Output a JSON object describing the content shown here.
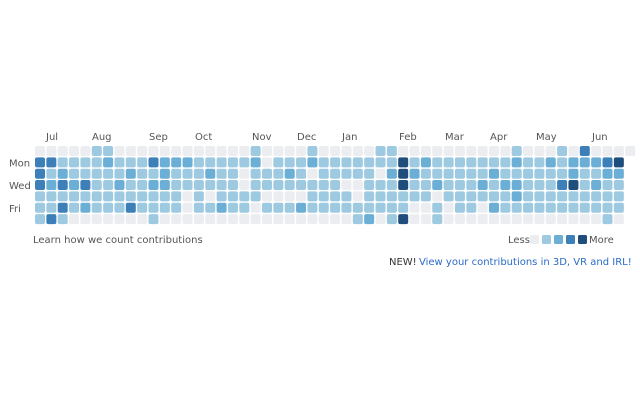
{
  "months": [
    "Jul",
    "Aug",
    "Sep",
    "Oct",
    "Nov",
    "Dec",
    "Jan",
    "Feb",
    "Mar",
    "Apr",
    "May",
    "Jun"
  ],
  "days": [
    "Mon",
    "Wed",
    "Fri"
  ],
  "levels_colors": [
    "#ebedf0",
    "#9ecae1",
    "#6baed6",
    "#3d7fb8",
    "#1f4e7c"
  ],
  "cells": [
    [
      0,
      0,
      0,
      0,
      0,
      1,
      1,
      0,
      0,
      0,
      0,
      0,
      0,
      0,
      0,
      0,
      0,
      0,
      0,
      1,
      0,
      0,
      0,
      0,
      1,
      0,
      0,
      0,
      0,
      0,
      1,
      1,
      0,
      0,
      0,
      0,
      0,
      0,
      0,
      0,
      0,
      0,
      1,
      0,
      0,
      0,
      1,
      0,
      3,
      0,
      0,
      0,
      0
    ],
    [
      3,
      3,
      1,
      1,
      1,
      1,
      2,
      1,
      1,
      1,
      3,
      2,
      2,
      2,
      1,
      1,
      1,
      1,
      1,
      2,
      0,
      1,
      1,
      1,
      2,
      1,
      1,
      1,
      1,
      1,
      1,
      1,
      4,
      1,
      2,
      1,
      1,
      1,
      1,
      1,
      1,
      1,
      2,
      1,
      1,
      2,
      1,
      2,
      2,
      2,
      3,
      4,
      null
    ],
    [
      3,
      1,
      2,
      1,
      1,
      1,
      1,
      1,
      2,
      1,
      1,
      2,
      1,
      1,
      1,
      2,
      1,
      1,
      0,
      1,
      1,
      1,
      2,
      1,
      0,
      1,
      1,
      1,
      1,
      1,
      0,
      2,
      4,
      2,
      1,
      1,
      1,
      1,
      1,
      1,
      2,
      1,
      1,
      1,
      1,
      1,
      1,
      2,
      1,
      1,
      2,
      2,
      null
    ],
    [
      3,
      2,
      3,
      2,
      3,
      1,
      1,
      2,
      1,
      1,
      2,
      2,
      1,
      1,
      1,
      1,
      1,
      1,
      0,
      1,
      1,
      1,
      1,
      1,
      1,
      1,
      1,
      0,
      0,
      1,
      1,
      1,
      4,
      1,
      1,
      2,
      1,
      1,
      1,
      2,
      1,
      2,
      2,
      1,
      1,
      1,
      3,
      4,
      1,
      2,
      1,
      1,
      null
    ],
    [
      1,
      1,
      1,
      1,
      1,
      1,
      1,
      1,
      1,
      1,
      1,
      1,
      1,
      0,
      1,
      0,
      1,
      1,
      1,
      1,
      0,
      0,
      0,
      0,
      1,
      1,
      1,
      1,
      0,
      1,
      1,
      1,
      1,
      1,
      1,
      0,
      1,
      1,
      1,
      1,
      1,
      1,
      2,
      1,
      1,
      1,
      1,
      1,
      1,
      1,
      1,
      1,
      null
    ],
    [
      1,
      1,
      3,
      1,
      2,
      1,
      1,
      1,
      3,
      1,
      1,
      1,
      1,
      0,
      1,
      1,
      2,
      1,
      1,
      0,
      1,
      1,
      1,
      2,
      1,
      1,
      1,
      1,
      1,
      1,
      1,
      1,
      1,
      0,
      0,
      1,
      0,
      1,
      1,
      0,
      2,
      1,
      1,
      1,
      1,
      1,
      1,
      1,
      1,
      1,
      1,
      1,
      null
    ],
    [
      1,
      3,
      1,
      0,
      0,
      0,
      0,
      0,
      0,
      0,
      1,
      0,
      0,
      0,
      0,
      0,
      0,
      0,
      0,
      0,
      0,
      0,
      0,
      0,
      0,
      0,
      0,
      0,
      1,
      2,
      0,
      1,
      4,
      0,
      0,
      1,
      0,
      0,
      0,
      0,
      0,
      0,
      0,
      0,
      0,
      0,
      0,
      0,
      0,
      0,
      1,
      0,
      null
    ]
  ],
  "footer": {
    "learn": "Learn how we count contributions",
    "less": "Less",
    "more": "More",
    "new": "NEW!",
    "link": "View your contributions in 3D, VR and IRL!"
  }
}
